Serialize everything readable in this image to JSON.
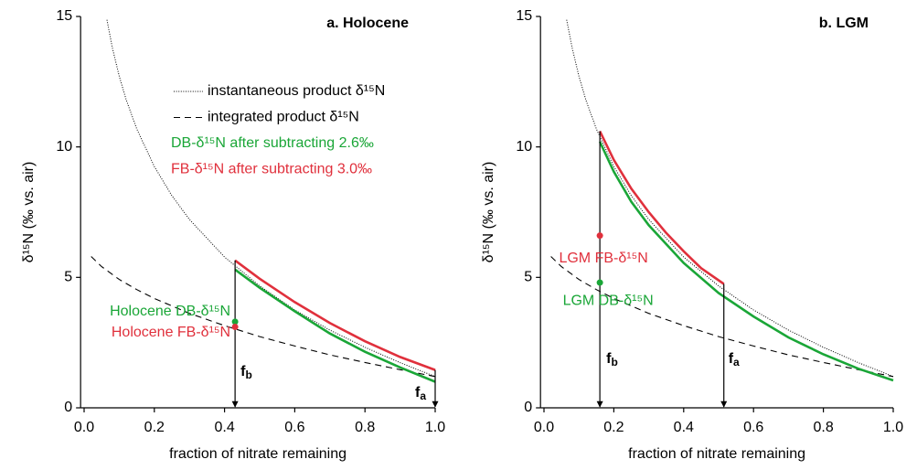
{
  "chart_data": [
    {
      "type": "line",
      "title": "a. Holocene",
      "x_label": "fraction of nitrate remaining",
      "y_label": "δ¹⁵N (‰ vs. air)",
      "xlim": [
        -0.01,
        1.0
      ],
      "ylim": [
        0,
        15
      ],
      "xticks": [
        {
          "value": 0,
          "label": "0.0"
        },
        0.2,
        0.4,
        0.6,
        0.8,
        {
          "value": 1,
          "label": "1.0"
        }
      ],
      "yticks": [
        0,
        5,
        10,
        15
      ],
      "legend": true,
      "series": [
        {
          "name": "instantaneous product δ¹⁵N",
          "color": "#000000",
          "style": "dotted",
          "x": [
            0.065,
            0.08,
            0.1,
            0.12,
            0.15,
            0.2,
            0.25,
            0.3,
            0.4,
            0.5,
            0.6,
            0.7,
            0.8,
            0.9,
            1.0
          ],
          "values": [
            14.87,
            13.83,
            12.71,
            11.8,
            10.69,
            9.25,
            8.13,
            7.22,
            5.78,
            4.67,
            3.75,
            2.98,
            2.32,
            1.73,
            1.2
          ]
        },
        {
          "name": "integrated product δ¹⁵N",
          "color": "#000000",
          "style": "dashed",
          "x": [
            0.02,
            0.05,
            0.1,
            0.15,
            0.2,
            0.3,
            0.4,
            0.5,
            0.6,
            0.7,
            0.8,
            0.9,
            1.0
          ],
          "values": [
            5.8,
            5.41,
            4.92,
            4.53,
            4.19,
            3.62,
            3.15,
            2.73,
            2.37,
            2.03,
            1.74,
            1.46,
            1.2
          ]
        },
        {
          "name": "DB-δ¹⁵N after subtracting 2.6‰",
          "color": "#1aa637",
          "style": "solid",
          "x": [
            0.43,
            0.5,
            0.6,
            0.7,
            0.8,
            0.9,
            1.0
          ],
          "values": [
            5.3,
            4.6,
            3.7,
            2.85,
            2.15,
            1.55,
            1.0
          ]
        },
        {
          "name": "FB-δ¹⁵N after subtracting 3.0‰",
          "color": "#e0303c",
          "style": "solid",
          "x": [
            0.43,
            0.5,
            0.6,
            0.7,
            0.8,
            0.9,
            1.0
          ],
          "values": [
            5.65,
            4.95,
            4.05,
            3.25,
            2.55,
            1.95,
            1.45
          ]
        }
      ],
      "points": [
        {
          "name": "Holocene DB-δ¹⁵N",
          "color": "#1aa637",
          "x": 0.43,
          "value": 3.3
        },
        {
          "name": "Holocene FB-δ¹⁵N",
          "color": "#e0303c",
          "x": 0.43,
          "value": 3.1
        }
      ],
      "drops": [
        {
          "label": [
            "f",
            "b"
          ],
          "x": 0.43,
          "from": 5.65
        },
        {
          "label": [
            "f",
            "a"
          ],
          "x": 1.0,
          "from": 1.45
        }
      ]
    },
    {
      "type": "line",
      "title": "b. LGM",
      "x_label": "fraction of nitrate remaining",
      "y_label": "δ¹⁵N (‰ vs. air)",
      "xlim": [
        -0.01,
        1.0
      ],
      "ylim": [
        0,
        15
      ],
      "xticks": [
        {
          "value": 0,
          "label": "0.0"
        },
        0.2,
        0.4,
        0.6,
        0.8,
        {
          "value": 1,
          "label": "1.0"
        }
      ],
      "yticks": [
        0,
        5,
        10,
        15
      ],
      "legend": false,
      "series": [
        {
          "color": "#000000",
          "style": "dotted",
          "x": [
            0.065,
            0.08,
            0.1,
            0.12,
            0.15,
            0.2,
            0.25,
            0.3,
            0.4,
            0.5,
            0.6,
            0.7,
            0.8,
            0.9,
            1.0
          ],
          "values": [
            14.87,
            13.83,
            12.71,
            11.8,
            10.69,
            9.25,
            8.13,
            7.22,
            5.78,
            4.67,
            3.75,
            2.98,
            2.32,
            1.73,
            1.2
          ]
        },
        {
          "color": "#000000",
          "style": "dashed",
          "x": [
            0.02,
            0.05,
            0.1,
            0.15,
            0.2,
            0.3,
            0.4,
            0.5,
            0.6,
            0.7,
            0.8,
            0.9,
            1.0
          ],
          "values": [
            5.8,
            5.41,
            4.92,
            4.53,
            4.19,
            3.62,
            3.15,
            2.73,
            2.37,
            2.03,
            1.74,
            1.46,
            1.2
          ]
        },
        {
          "color": "#1aa637",
          "style": "solid",
          "x": [
            0.16,
            0.2,
            0.25,
            0.3,
            0.4,
            0.5,
            0.6,
            0.7,
            0.8,
            0.9,
            1.0
          ],
          "values": [
            10.2,
            9.05,
            7.9,
            7.0,
            5.55,
            4.4,
            3.5,
            2.7,
            2.05,
            1.5,
            1.05
          ]
        },
        {
          "color": "#e0303c",
          "style": "solid",
          "x": [
            0.16,
            0.2,
            0.25,
            0.3,
            0.35,
            0.4,
            0.45,
            0.515
          ],
          "values": [
            10.6,
            9.5,
            8.4,
            7.5,
            6.7,
            6.0,
            5.35,
            4.75
          ]
        }
      ],
      "points": [
        {
          "name": "LGM FB-δ¹⁵N",
          "color": "#e0303c",
          "x": 0.16,
          "value": 6.6
        },
        {
          "name": "LGM DB-δ¹⁵N",
          "color": "#1aa637",
          "x": 0.16,
          "value": 4.8
        }
      ],
      "drops": [
        {
          "label": [
            "f",
            "b"
          ],
          "x": 0.16,
          "from": 10.6
        },
        {
          "label": [
            "f",
            "a"
          ],
          "x": 0.515,
          "from": 4.75
        }
      ]
    }
  ]
}
